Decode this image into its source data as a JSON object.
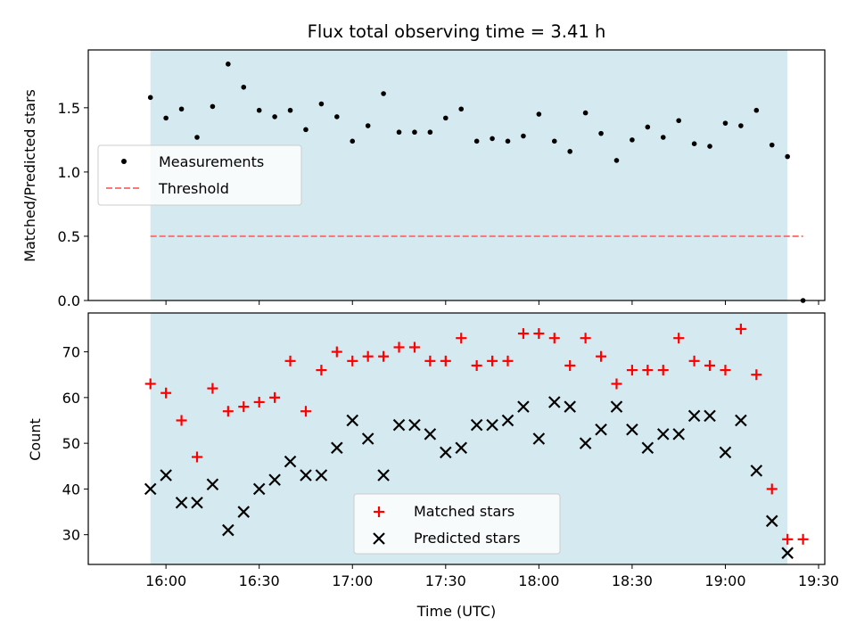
{
  "chart_data": {
    "title": "Flux total observing time = 3.41 h",
    "x_label": "Time (UTC)",
    "x_ticks": [
      {
        "label": "16:00",
        "value": 960
      },
      {
        "label": "16:30",
        "value": 990
      },
      {
        "label": "17:00",
        "value": 1020
      },
      {
        "label": "17:30",
        "value": 1050
      },
      {
        "label": "18:00",
        "value": 1080
      },
      {
        "label": "18:30",
        "value": 1110
      },
      {
        "label": "19:00",
        "value": 1140
      },
      {
        "label": "19:30",
        "value": 1170
      }
    ],
    "x_range_minutes": [
      935,
      1172
    ],
    "shaded_interval_minutes": [
      955,
      1160
    ],
    "shade_color": "#d4eaf0",
    "times": [
      "15:55",
      "16:00",
      "16:05",
      "16:10",
      "16:15",
      "16:20",
      "16:25",
      "16:30",
      "16:35",
      "16:40",
      "16:45",
      "16:50",
      "16:55",
      "17:00",
      "17:05",
      "17:10",
      "17:15",
      "17:20",
      "17:25",
      "17:30",
      "17:35",
      "17:40",
      "17:45",
      "17:50",
      "17:55",
      "18:00",
      "18:05",
      "18:10",
      "18:15",
      "18:20",
      "18:25",
      "18:30",
      "18:35",
      "18:40",
      "18:45",
      "18:50",
      "18:55",
      "19:00",
      "19:05",
      "19:10",
      "19:15",
      "19:20",
      "19:25"
    ],
    "top_panel": {
      "type": "scatter",
      "y_label": "Matched/Predicted stars",
      "ylim": [
        0,
        1.95
      ],
      "y_ticks": [
        "0.0",
        "0.5",
        "1.0",
        "1.5"
      ],
      "legend_position": "center-left",
      "series": [
        {
          "name": "Measurements",
          "color": "#000000",
          "values": [
            1.58,
            1.42,
            1.49,
            1.27,
            1.51,
            1.84,
            1.66,
            1.48,
            1.43,
            1.48,
            1.33,
            1.53,
            1.43,
            1.24,
            1.36,
            1.61,
            1.31,
            1.31,
            1.31,
            1.42,
            1.49,
            1.24,
            1.26,
            1.24,
            1.28,
            1.45,
            1.24,
            1.16,
            1.46,
            1.3,
            1.09,
            1.25,
            1.35,
            1.27,
            1.4,
            1.22,
            1.2,
            1.38,
            1.36,
            1.48,
            1.21,
            1.12,
            0.0
          ]
        },
        {
          "name": "Threshold",
          "color": "#ff7777",
          "style": "dashed",
          "value": 0.5
        }
      ]
    },
    "bottom_panel": {
      "type": "scatter",
      "y_label": "Count",
      "ylim": [
        23.5,
        78.5
      ],
      "y_ticks": [
        "30",
        "40",
        "50",
        "60",
        "70"
      ],
      "legend_position": "bottom-center",
      "series": [
        {
          "name": "Matched stars",
          "color": "#ff0000",
          "marker": "plus",
          "values": [
            63,
            61,
            55,
            47,
            62,
            57,
            58,
            59,
            60,
            68,
            57,
            66,
            70,
            68,
            69,
            69,
            71,
            71,
            68,
            68,
            73,
            67,
            68,
            68,
            74,
            74,
            73,
            67,
            73,
            69,
            63,
            66,
            66,
            66,
            73,
            68,
            67,
            66,
            75,
            65,
            40,
            29,
            29
          ]
        },
        {
          "name": "Predicted stars",
          "color": "#000000",
          "marker": "x",
          "values": [
            40,
            43,
            37,
            37,
            41,
            31,
            35,
            40,
            42,
            46,
            43,
            43,
            49,
            55,
            51,
            43,
            54,
            54,
            52,
            48,
            49,
            54,
            54,
            55,
            58,
            51,
            59,
            58,
            50,
            53,
            58,
            53,
            49,
            52,
            52,
            56,
            56,
            48,
            55,
            44,
            33,
            26,
            null
          ]
        }
      ]
    }
  }
}
